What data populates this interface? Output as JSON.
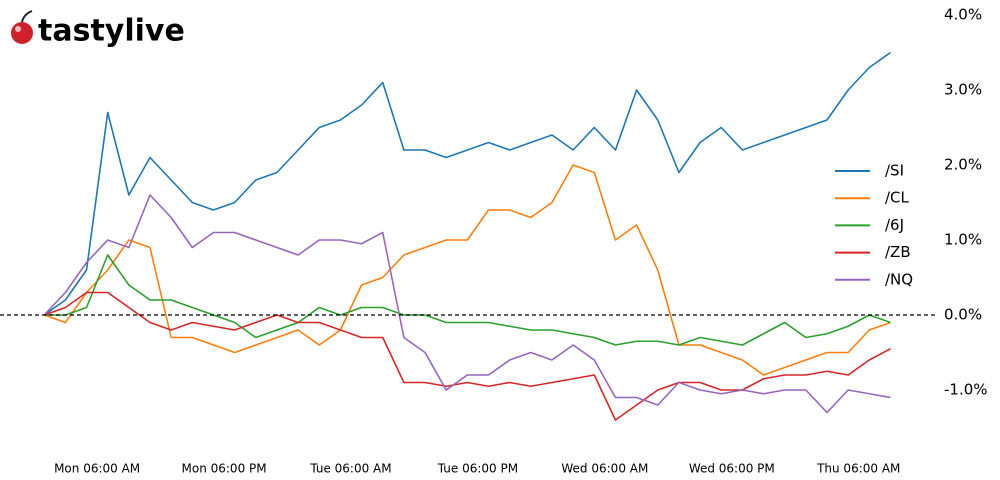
{
  "logo": "tastylive",
  "chart_data": {
    "type": "line",
    "x": [
      1,
      3,
      5,
      7,
      9,
      11,
      13,
      15,
      17,
      19,
      21,
      23,
      25,
      27,
      29,
      31,
      33,
      35,
      37,
      39,
      41,
      43,
      45,
      47,
      49,
      51,
      53,
      55,
      57,
      59,
      61,
      63,
      65,
      67,
      69,
      71,
      73,
      75,
      77,
      79,
      81
    ],
    "xlim": [
      0.6,
      81.9
    ],
    "xticks": [
      {
        "value": 6,
        "label": "Mon 06:00 AM"
      },
      {
        "value": 18,
        "label": "Mon 06:00 PM"
      },
      {
        "value": 30,
        "label": "Tue 06:00 AM"
      },
      {
        "value": 42,
        "label": "Tue 06:00 PM"
      },
      {
        "value": 54,
        "label": "Wed 06:00 AM"
      },
      {
        "value": 66,
        "label": "Wed 06:00 PM"
      },
      {
        "value": 78,
        "label": "Thu 06:00 AM"
      }
    ],
    "ylim": [
      -1.8,
      4.2
    ],
    "yticks": [
      {
        "value": -1,
        "label": "-1.0%"
      },
      {
        "value": 0,
        "label": "0.0%"
      },
      {
        "value": 1,
        "label": "1.0%"
      },
      {
        "value": 2,
        "label": "2.0%"
      },
      {
        "value": 3,
        "label": "3.0%"
      },
      {
        "value": 4,
        "label": "4.0%"
      }
    ],
    "hline": 0,
    "legend": "right",
    "series": [
      {
        "name": "/SI",
        "color": "#1f77b4",
        "values": [
          0,
          0.2,
          0.6,
          2.7,
          1.6,
          2.1,
          1.8,
          1.5,
          1.4,
          1.5,
          1.8,
          1.9,
          2.2,
          2.5,
          2.6,
          2.8,
          3.1,
          2.2,
          2.2,
          2.1,
          2.2,
          2.3,
          2.2,
          2.3,
          2.4,
          2.2,
          2.5,
          2.2,
          3.0,
          2.6,
          1.9,
          2.3,
          2.5,
          2.2,
          2.3,
          2.4,
          2.5,
          2.6,
          3.0,
          3.3,
          3.5
        ]
      },
      {
        "name": "/CL",
        "color": "#ff7f0e",
        "values": [
          0,
          -0.1,
          0.3,
          0.6,
          1.0,
          0.9,
          -0.3,
          -0.3,
          -0.4,
          -0.5,
          -0.4,
          -0.3,
          -0.2,
          -0.4,
          -0.2,
          0.4,
          0.5,
          0.8,
          0.9,
          1.0,
          1.0,
          1.4,
          1.4,
          1.3,
          1.5,
          2.0,
          1.9,
          1.0,
          1.2,
          0.6,
          -0.4,
          -0.4,
          -0.5,
          -0.6,
          -0.8,
          -0.7,
          -0.6,
          -0.5,
          -0.5,
          -0.2,
          -0.1
        ]
      },
      {
        "name": "/6J",
        "color": "#2ca02c",
        "values": [
          0,
          0,
          0.1,
          0.8,
          0.4,
          0.2,
          0.2,
          0.1,
          0,
          -0.1,
          -0.3,
          -0.2,
          -0.1,
          0.1,
          0,
          0.1,
          0.1,
          0,
          0,
          -0.1,
          -0.1,
          -0.1,
          -0.15,
          -0.2,
          -0.2,
          -0.25,
          -0.3,
          -0.4,
          -0.35,
          -0.35,
          -0.4,
          -0.3,
          -0.35,
          -0.4,
          -0.25,
          -0.1,
          -0.3,
          -0.25,
          -0.15,
          0,
          -0.1
        ]
      },
      {
        "name": "/ZB",
        "color": "#d62728",
        "values": [
          0,
          0.1,
          0.3,
          0.3,
          0.1,
          -0.1,
          -0.2,
          -0.1,
          -0.15,
          -0.2,
          -0.1,
          0,
          -0.1,
          -0.1,
          -0.2,
          -0.3,
          -0.3,
          -0.9,
          -0.9,
          -0.95,
          -0.9,
          -0.95,
          -0.9,
          -0.95,
          -0.9,
          -0.85,
          -0.8,
          -1.4,
          -1.2,
          -1.0,
          -0.9,
          -0.9,
          -1.0,
          -1.0,
          -0.85,
          -0.8,
          -0.8,
          -0.75,
          -0.8,
          -0.6,
          -0.45
        ]
      },
      {
        "name": "/NQ",
        "color": "#9467bd",
        "values": [
          0,
          0.3,
          0.7,
          1.0,
          0.9,
          1.6,
          1.3,
          0.9,
          1.1,
          1.1,
          1.0,
          0.9,
          0.8,
          1.0,
          1.0,
          0.95,
          1.1,
          -0.3,
          -0.5,
          -1.0,
          -0.8,
          -0.8,
          -0.6,
          -0.5,
          -0.6,
          -0.4,
          -0.6,
          -1.1,
          -1.1,
          -1.2,
          -0.9,
          -1.0,
          -1.05,
          -1.0,
          -1.05,
          -1.0,
          -1.0,
          -1.3,
          -1.0,
          -1.05,
          -1.1
        ]
      }
    ]
  }
}
